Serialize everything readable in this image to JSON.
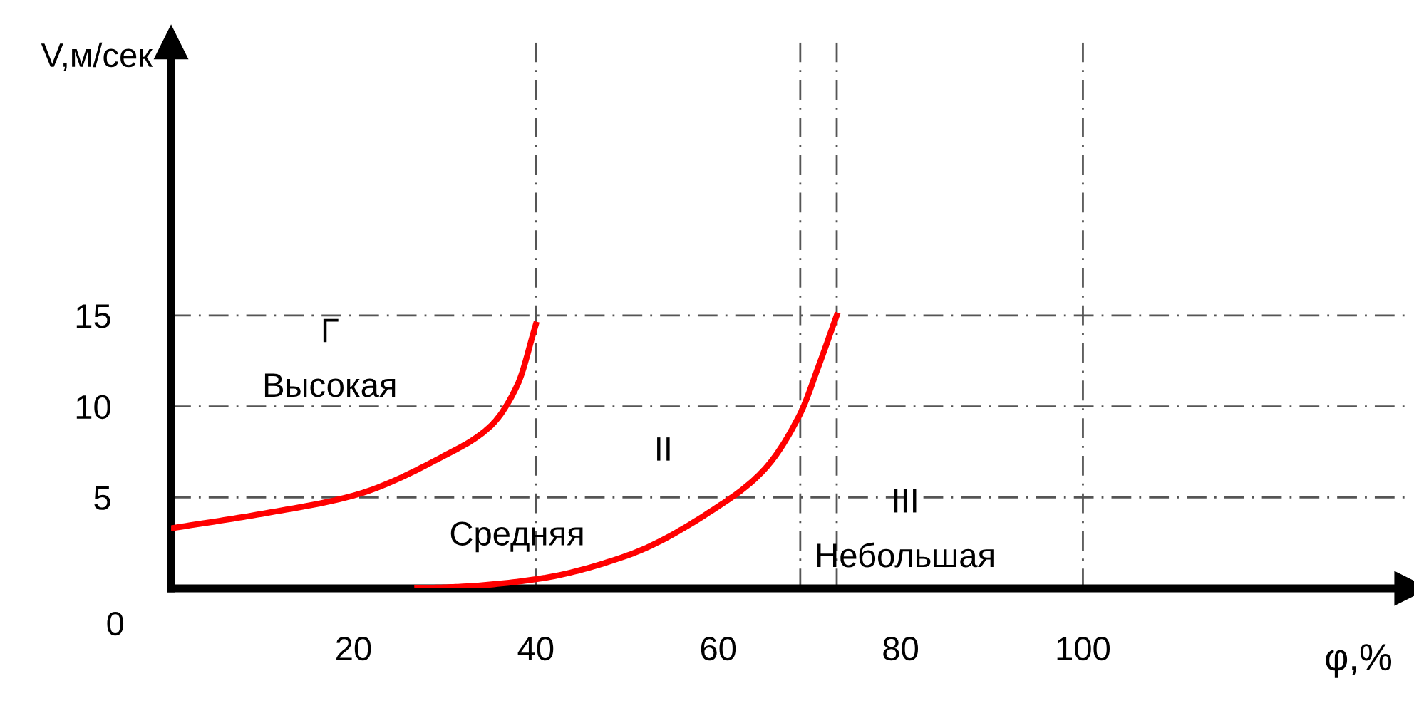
{
  "chart_data": {
    "type": "line",
    "xlabel": "φ,%",
    "ylabel": "V,м/сек",
    "xlim": [
      0,
      136
    ],
    "ylim": [
      0,
      30
    ],
    "xticks": [
      20,
      40,
      60,
      80,
      100
    ],
    "yticks": [
      5,
      10,
      15
    ],
    "series": [
      {
        "color": "#ff0000",
        "x": [
          0,
          10,
          20,
          30,
          35,
          38,
          40
        ],
        "values": [
          3.3,
          4.1,
          5.1,
          7.3,
          8.9,
          11.2,
          14.5
        ]
      },
      {
        "color": "#ff0000",
        "x": [
          27,
          32,
          40,
          50,
          60,
          65,
          69,
          71,
          73
        ],
        "values": [
          0,
          0.1,
          0.5,
          1.8,
          4.5,
          6.5,
          9.6,
          12.2,
          15
        ]
      }
    ],
    "ref_lines": [
      {
        "axis": "y",
        "value": 5
      },
      {
        "axis": "y",
        "value": 10
      },
      {
        "axis": "y",
        "value": 15
      },
      {
        "axis": "x",
        "value": 40
      },
      {
        "axis": "x",
        "value": 69
      },
      {
        "axis": "x",
        "value": 73
      },
      {
        "axis": "x",
        "value": 100
      }
    ],
    "line_style": "solid",
    "grid": false,
    "legend": false,
    "annotations": [
      "Г",
      "Высокая",
      "II",
      "Средняя",
      "III",
      "Небольшая",
      "0"
    ]
  }
}
